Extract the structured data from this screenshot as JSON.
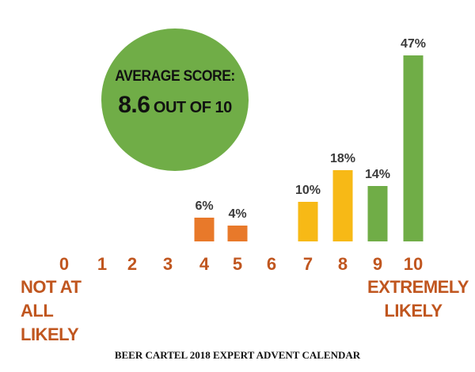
{
  "chart_data": {
    "type": "bar",
    "categories": [
      "0",
      "1",
      "2",
      "3",
      "4",
      "5",
      "6",
      "7",
      "8",
      "9",
      "10"
    ],
    "values": [
      0,
      0,
      0,
      0,
      6,
      4,
      0,
      10,
      18,
      14,
      47
    ],
    "data_labels": [
      "",
      "",
      "",
      "",
      "6%",
      "4%",
      "",
      "10%",
      "18%",
      "14%",
      "47%"
    ],
    "bar_colors": [
      "#e8792a",
      "#e8792a",
      "#e8792a",
      "#e8792a",
      "#e8792a",
      "#e8792a",
      "#e8792a",
      "#f7b916",
      "#f7b916",
      "#70ad47",
      "#70ad47"
    ],
    "ylim": [
      0,
      47
    ],
    "grid": false,
    "legend": "none"
  },
  "average": {
    "line1": "AVERAGE SCORE:",
    "score": "8.6",
    "rest": "OUT OF 10"
  },
  "scale_labels": {
    "low_line1": "NOT AT ALL",
    "low_line2": "LIKELY",
    "high_line1": "EXTREMELY",
    "high_line2": "LIKELY"
  },
  "caption": "BEER CARTEL 2018 EXPERT ADVENT CALENDAR",
  "colors": {
    "detractor": "#e8792a",
    "passive": "#f7b916",
    "promoter": "#70ad47",
    "axis_label_text": "#c0561f",
    "data_label_text": "#3a3a3a",
    "badge": "#70ad47"
  }
}
